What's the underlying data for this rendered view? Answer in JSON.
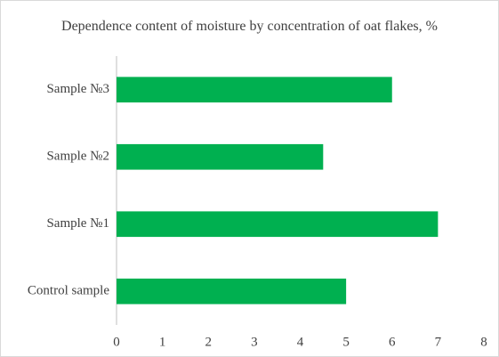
{
  "chart_data": {
    "type": "barh",
    "title": "Dependence content of moisture by concentration of oat flakes, %",
    "categories": [
      "Control sample",
      "Sample №1",
      "Sample №2",
      "Sample №3"
    ],
    "values": [
      5,
      7,
      4.5,
      6
    ],
    "color": "#00b050",
    "xlim": [
      0,
      8
    ],
    "xticks": [
      0,
      1,
      2,
      3,
      4,
      5,
      6,
      7,
      8
    ],
    "grid": false
  }
}
